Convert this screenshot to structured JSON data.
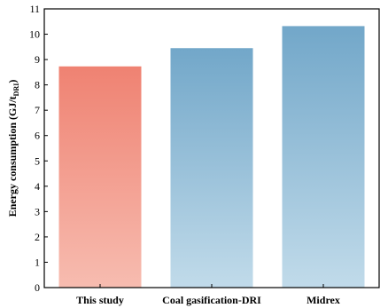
{
  "chart_data": {
    "type": "bar",
    "categories": [
      "This study",
      "Coal gasification-DRI",
      "Midrex"
    ],
    "values": [
      8.73,
      9.45,
      10.32
    ],
    "ylabel": "Energy consumption (GJ/t",
    "ylabel_sub": "DRI",
    "ylabel_close": ")",
    "ylim": [
      0,
      11
    ],
    "yticks": [
      "0",
      "1",
      "2",
      "3",
      "4",
      "5",
      "6",
      "7",
      "8",
      "9",
      "10",
      "11"
    ],
    "grid": false,
    "colors": {
      "This study": {
        "top": "#ef8272",
        "bottom": "#f7bcb0"
      },
      "Coal gasification-DRI": {
        "top": "#72a7c9",
        "bottom": "#c1dbea"
      },
      "Midrex": {
        "top": "#72a7c9",
        "bottom": "#c1dbea"
      }
    }
  }
}
